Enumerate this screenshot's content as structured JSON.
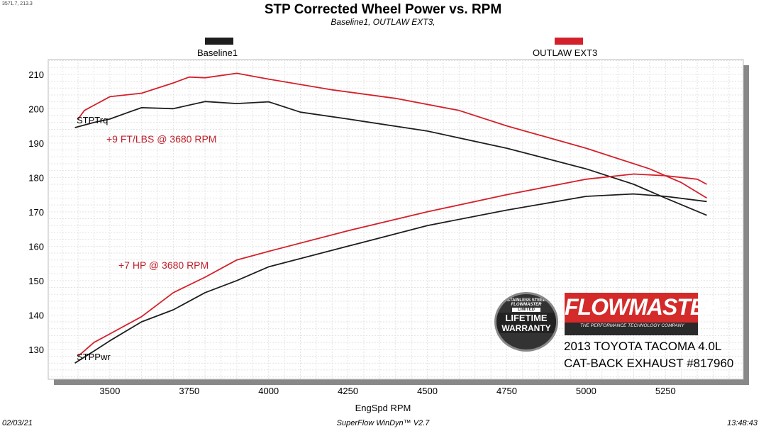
{
  "cursor_readout": "3571.7, 213.3",
  "footer": {
    "date": "02/03/21",
    "software": "SuperFlow WinDyn™ V2.7",
    "time": "13:48:43"
  },
  "annotations": {
    "torque_gain": "+9 FT/LBS @ 3680 RPM",
    "power_gain": "+7 HP @ 3680 RPM",
    "torque_label": "STPTrq",
    "power_label": "STPPwr"
  },
  "branding": {
    "logo": "FLOWMASTER",
    "tagline": "THE PERFORMANCE TECHNOLOGY COMPANY",
    "badge": [
      "STAINLESS STEEL",
      "FLOWMASTER",
      "LIMITED",
      "LIFETIME",
      "WARRANTY"
    ],
    "vehicle": "2013 TOYOTA TACOMA 4.0L",
    "product": "CAT-BACK EXHAUST #817960"
  },
  "colors": {
    "baseline": "#1e1e1e",
    "outlaw": "#d4202a"
  },
  "chart_data": {
    "type": "line",
    "title": "STP Corrected Wheel Power vs. RPM",
    "subtitle": "Baseline1,  OUTLAW EXT3,",
    "xlabel": "EngSpd  RPM",
    "ylabel": "",
    "xlim": [
      3306,
      5495
    ],
    "ylim": [
      121.3,
      214.3
    ],
    "xticks": [
      3500,
      3750,
      4000,
      4250,
      4500,
      4750,
      5000,
      5250
    ],
    "yticks": [
      130,
      140,
      150,
      160,
      170,
      180,
      190,
      200,
      210
    ],
    "grid": true,
    "legend": "top",
    "series": [
      {
        "name": "Baseline1",
        "metric": "STPTrq",
        "color": "baseline",
        "x": [
          3390,
          3450,
          3500,
          3560,
          3600,
          3700,
          3800,
          3900,
          4000,
          4100,
          4250,
          4500,
          4750,
          5000,
          5150,
          5250,
          5380
        ],
        "y": [
          194.5,
          196,
          197,
          199,
          200.3,
          200,
          202.1,
          201.5,
          202,
          199,
          197,
          193.5,
          188.5,
          182.5,
          178,
          174,
          169
        ]
      },
      {
        "name": "OUTLAW EXT3",
        "metric": "STPTrq",
        "color": "outlaw",
        "x": [
          3400,
          3420,
          3450,
          3500,
          3600,
          3700,
          3750,
          3800,
          3900,
          4000,
          4200,
          4400,
          4600,
          4750,
          5000,
          5200,
          5300,
          5380
        ],
        "y": [
          197,
          199.5,
          201,
          203.5,
          204.5,
          207.5,
          209.2,
          209,
          210.3,
          208.6,
          205.5,
          203,
          199.5,
          195,
          188.5,
          182.5,
          178.5,
          174
        ]
      },
      {
        "name": "Baseline1",
        "metric": "STPPwr",
        "color": "baseline",
        "x": [
          3390,
          3450,
          3500,
          3600,
          3700,
          3800,
          3900,
          4000,
          4250,
          4500,
          4750,
          5000,
          5150,
          5250,
          5380
        ],
        "y": [
          126,
          129.5,
          132.5,
          138,
          141.5,
          146.5,
          150,
          154,
          160,
          166,
          170.5,
          174.5,
          175.2,
          174.5,
          173
        ]
      },
      {
        "name": "OUTLAW EXT3",
        "metric": "STPPwr",
        "color": "outlaw",
        "x": [
          3400,
          3450,
          3500,
          3600,
          3700,
          3800,
          3900,
          4000,
          4250,
          4500,
          4750,
          5000,
          5150,
          5250,
          5350,
          5380
        ],
        "y": [
          128,
          132,
          134.5,
          139.5,
          146.5,
          151,
          156,
          158.5,
          164.5,
          170,
          175,
          179.5,
          181,
          180.5,
          179.5,
          178
        ]
      }
    ]
  }
}
